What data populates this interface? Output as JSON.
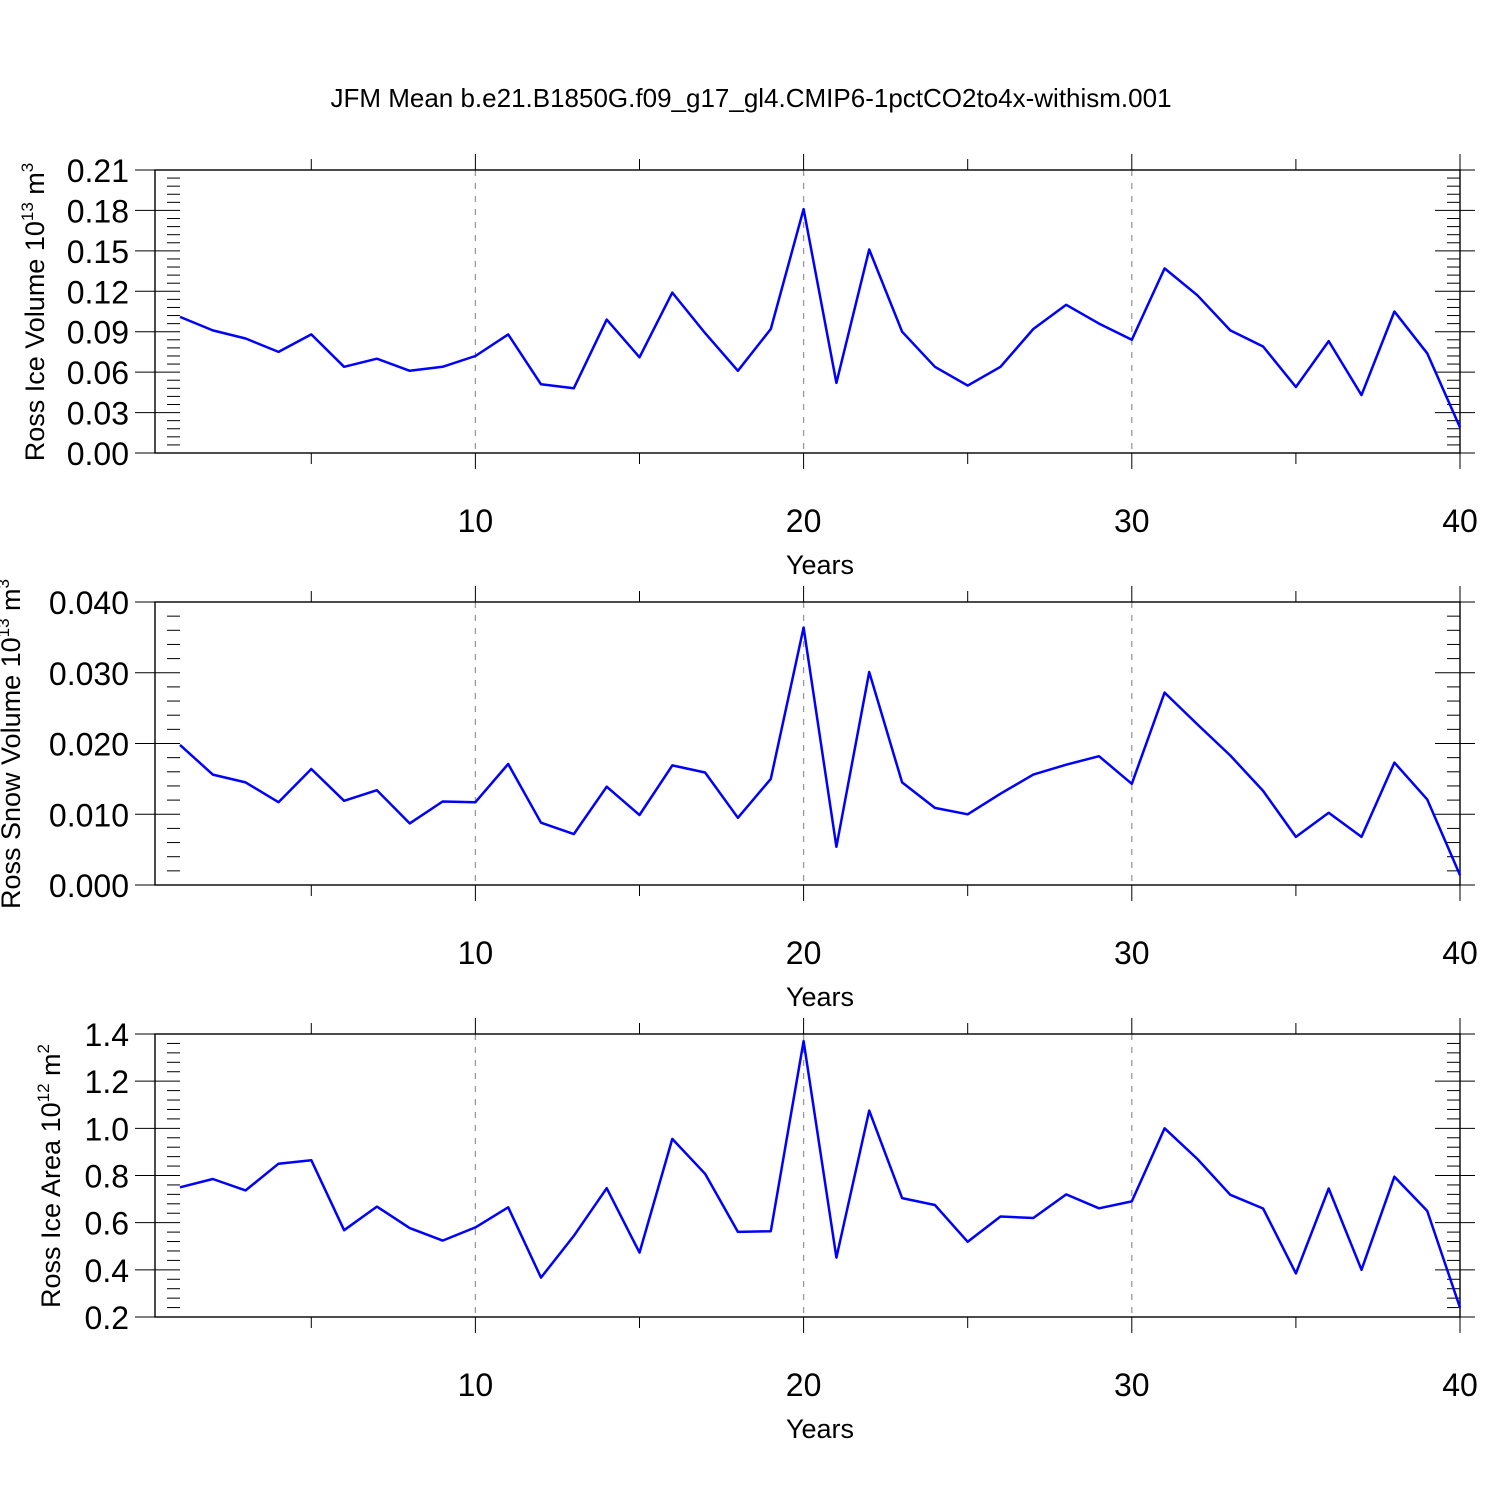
{
  "title": "JFM Mean b.e21.B1850G.f09_g17_gl4.CMIP6-1pctCO2to4x-withism.001",
  "colors": {
    "line": "#0000ff",
    "grid": "#999999",
    "axis": "#000000",
    "background": "#ffffff"
  },
  "chart_data": [
    {
      "type": "line",
      "xlabel": "Years",
      "ylabel": {
        "main": "Ross Ice Volume 10",
        "sup1": "13",
        "mid": " m",
        "sup2": "3"
      },
      "xlim": [
        1,
        40
      ],
      "ylim": [
        0,
        0.21
      ],
      "xticks": [
        10,
        20,
        30,
        40
      ],
      "xtick_labels": [
        "10",
        "20",
        "30",
        "40"
      ],
      "yticks": [
        0,
        0.03,
        0.06,
        0.09,
        0.12,
        0.15,
        0.18,
        0.21
      ],
      "ytick_labels": [
        "0.00",
        "0.03",
        "0.06",
        "0.09",
        "0.12",
        "0.15",
        "0.18",
        "0.21"
      ],
      "grid": "vertical dashed at major x ticks",
      "x": [
        1,
        2,
        3,
        4,
        5,
        6,
        7,
        8,
        9,
        10,
        11,
        12,
        13,
        14,
        15,
        16,
        17,
        18,
        19,
        20,
        21,
        22,
        23,
        24,
        25,
        26,
        27,
        28,
        29,
        30,
        31,
        32,
        33,
        34,
        35,
        36,
        37,
        38,
        39,
        40
      ],
      "values": [
        0.101,
        0.091,
        0.085,
        0.075,
        0.088,
        0.064,
        0.07,
        0.061,
        0.064,
        0.072,
        0.088,
        0.051,
        0.048,
        0.099,
        0.071,
        0.119,
        0.089,
        0.061,
        0.092,
        0.181,
        0.052,
        0.151,
        0.09,
        0.064,
        0.05,
        0.064,
        0.092,
        0.11,
        0.096,
        0.084,
        0.137,
        0.117,
        0.091,
        0.079,
        0.049,
        0.083,
        0.043,
        0.105,
        0.074,
        0.019
      ]
    },
    {
      "type": "line",
      "xlabel": "Years",
      "ylabel": {
        "main": "Ross Snow Volume 10",
        "sup1": "13",
        "mid": " m",
        "sup2": "3"
      },
      "xlim": [
        1,
        40
      ],
      "ylim": [
        0,
        0.04
      ],
      "xticks": [
        10,
        20,
        30,
        40
      ],
      "xtick_labels": [
        "10",
        "20",
        "30",
        "40"
      ],
      "yticks": [
        0,
        0.01,
        0.02,
        0.03,
        0.04
      ],
      "ytick_labels": [
        "0.000",
        "0.010",
        "0.020",
        "0.030",
        "0.040"
      ],
      "grid": "vertical dashed at major x ticks",
      "x": [
        1,
        2,
        3,
        4,
        5,
        6,
        7,
        8,
        9,
        10,
        11,
        12,
        13,
        14,
        15,
        16,
        17,
        18,
        19,
        20,
        21,
        22,
        23,
        24,
        25,
        26,
        27,
        28,
        29,
        30,
        31,
        32,
        33,
        34,
        35,
        36,
        37,
        38,
        39,
        40
      ],
      "values": [
        0.0198,
        0.0156,
        0.0145,
        0.0117,
        0.0164,
        0.0119,
        0.0134,
        0.0087,
        0.0118,
        0.0117,
        0.0171,
        0.0088,
        0.0072,
        0.0139,
        0.0099,
        0.0169,
        0.0159,
        0.0095,
        0.015,
        0.0364,
        0.0054,
        0.0301,
        0.0145,
        0.0109,
        0.01,
        0.0129,
        0.0156,
        0.017,
        0.0182,
        0.0143,
        0.0272,
        0.0227,
        0.0183,
        0.0133,
        0.0068,
        0.0102,
        0.0068,
        0.0173,
        0.0121,
        0.0014
      ]
    },
    {
      "type": "line",
      "xlabel": "Years",
      "ylabel": {
        "main": "Ross Ice Area 10",
        "sup1": "12",
        "mid": " m",
        "sup2": "2"
      },
      "xlim": [
        1,
        40
      ],
      "ylim": [
        0.2,
        1.4
      ],
      "xticks": [
        10,
        20,
        30,
        40
      ],
      "xtick_labels": [
        "10",
        "20",
        "30",
        "40"
      ],
      "yticks": [
        0.2,
        0.4,
        0.6,
        0.8,
        1.0,
        1.2,
        1.4
      ],
      "ytick_labels": [
        "0.2",
        "0.4",
        "0.6",
        "0.8",
        "1.0",
        "1.2",
        "1.4"
      ],
      "grid": "vertical dashed at major x ticks",
      "x": [
        1,
        2,
        3,
        4,
        5,
        6,
        7,
        8,
        9,
        10,
        11,
        12,
        13,
        14,
        15,
        16,
        17,
        18,
        19,
        20,
        21,
        22,
        23,
        24,
        25,
        26,
        27,
        28,
        29,
        30,
        31,
        32,
        33,
        34,
        35,
        36,
        37,
        38,
        39,
        40
      ],
      "values": [
        0.75,
        0.785,
        0.737,
        0.85,
        0.865,
        0.568,
        0.668,
        0.577,
        0.524,
        0.58,
        0.665,
        0.367,
        0.544,
        0.746,
        0.473,
        0.955,
        0.807,
        0.561,
        0.564,
        1.37,
        0.452,
        1.075,
        0.704,
        0.675,
        0.519,
        0.626,
        0.62,
        0.72,
        0.661,
        0.69,
        1.0,
        0.87,
        0.718,
        0.66,
        0.385,
        0.745,
        0.4,
        0.795,
        0.65,
        0.24
      ]
    }
  ]
}
